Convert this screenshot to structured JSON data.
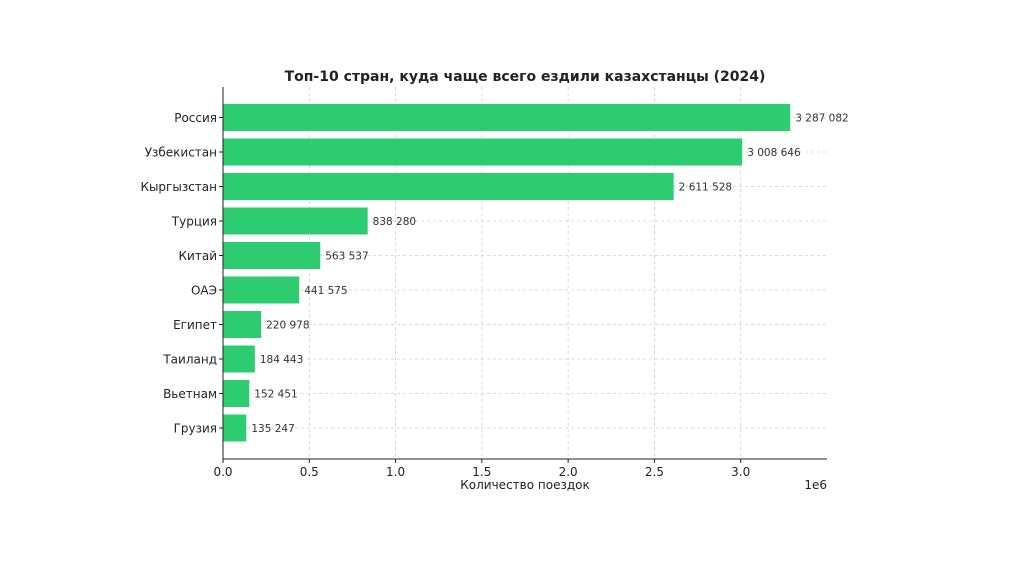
{
  "chart_data": {
    "type": "bar",
    "orientation": "horizontal",
    "title": "Топ-10 стран, куда чаще всего ездили казахстанцы (2024)",
    "xlabel": "Количество поездок",
    "ylabel": "",
    "x_scale_label": "1e6",
    "xlim": [
      0,
      3.5
    ],
    "x_ticks": [
      "0.0",
      "0.5",
      "1.0",
      "1.5",
      "2.0",
      "2.5",
      "3.0"
    ],
    "x_tick_values": [
      0,
      0.5,
      1.0,
      1.5,
      2.0,
      2.5,
      3.0
    ],
    "grid": true,
    "bar_color": "#2ecc71",
    "categories": [
      "Россия",
      "Узбекистан",
      "Кыргызстан",
      "Турция",
      "Китай",
      "ОАЭ",
      "Египет",
      "Таиланд",
      "Вьетнам",
      "Грузия"
    ],
    "values": [
      3287082,
      3008646,
      2611528,
      838280,
      563537,
      441575,
      220978,
      184443,
      152451,
      135247
    ],
    "value_labels": [
      "3 287 082",
      "3 008 646",
      "2 611 528",
      "838 280",
      "563 537",
      "441 575",
      "220 978",
      "184 443",
      "152 451",
      "135 247"
    ]
  }
}
